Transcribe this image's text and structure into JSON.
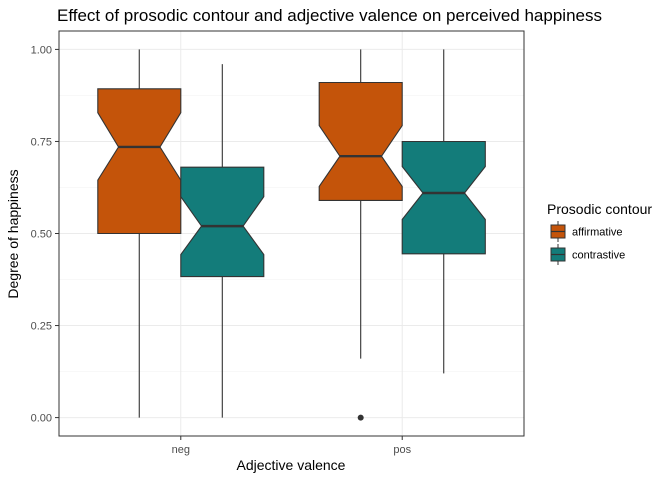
{
  "chart_data": {
    "type": "boxplot",
    "title": "Effect of prosodic contour and adjective valence on perceived happiness",
    "xlabel": "Adjective valence",
    "ylabel": "Degree of happiness",
    "ylim": [
      -0.05,
      1.05
    ],
    "y_ticks": [
      0.0,
      0.25,
      0.5,
      0.75,
      1.0
    ],
    "y_tick_labels": [
      "0.00",
      "0.25",
      "0.50",
      "0.75",
      "1.00"
    ],
    "categories": [
      "neg",
      "pos"
    ],
    "grid": true,
    "notched": true,
    "legend": {
      "title": "Prosodic contour",
      "placement": "right"
    },
    "series": [
      {
        "name": "affirmative",
        "color": "#c4540a",
        "boxes": [
          {
            "category": "neg",
            "min": 0.0,
            "q1": 0.5,
            "median": 0.735,
            "q3": 0.893,
            "max": 1.0,
            "notch_low": 0.645,
            "notch_high": 0.828,
            "outliers": []
          },
          {
            "category": "pos",
            "min": 0.16,
            "q1": 0.59,
            "median": 0.71,
            "q3": 0.91,
            "max": 1.0,
            "notch_low": 0.628,
            "notch_high": 0.793,
            "outliers": [
              0.0
            ]
          }
        ]
      },
      {
        "name": "contrastive",
        "color": "#137c7a",
        "boxes": [
          {
            "category": "neg",
            "min": 0.0,
            "q1": 0.383,
            "median": 0.52,
            "q3": 0.68,
            "max": 0.96,
            "notch_low": 0.443,
            "notch_high": 0.6,
            "outliers": []
          },
          {
            "category": "pos",
            "min": 0.12,
            "q1": 0.445,
            "median": 0.61,
            "q3": 0.75,
            "max": 1.0,
            "notch_low": 0.538,
            "notch_high": 0.682,
            "outliers": []
          }
        ]
      }
    ]
  }
}
